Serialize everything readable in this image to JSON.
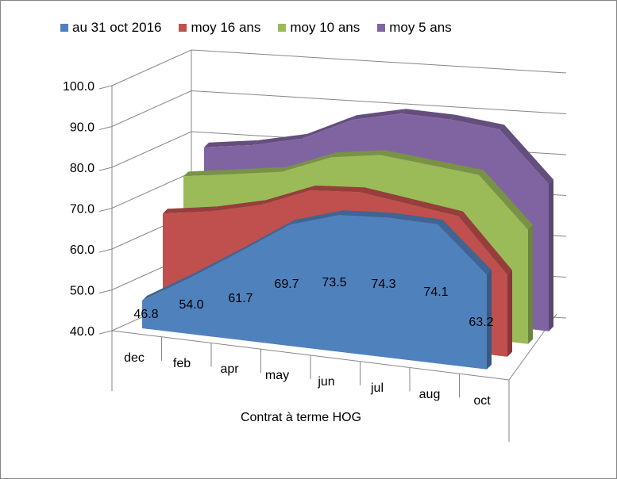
{
  "chart_data": {
    "type": "area",
    "variant": "3d",
    "title": "",
    "xlabel": "Contrat à terme  HOG",
    "ylabel": "",
    "ylim": [
      40,
      100
    ],
    "yticks": [
      "40.0",
      "50.0",
      "60.0",
      "70.0",
      "80.0",
      "90.0",
      "100.0"
    ],
    "grid": true,
    "legend_position": "top",
    "categories": [
      "dec",
      "feb",
      "apr",
      "may",
      "jun",
      "jul",
      "aug",
      "oct"
    ],
    "series": [
      {
        "name": "au 31 oct 2016",
        "color": "#4F81BD",
        "values": [
          46.8,
          54.0,
          61.7,
          69.7,
          73.5,
          74.3,
          74.1,
          63.2
        ],
        "labels": [
          "46.8",
          "54.0",
          "61.7",
          "69.7",
          "73.5",
          "74.3",
          "74.1",
          "63.2"
        ]
      },
      {
        "name": "moy 16 ans",
        "color": "#C0504D",
        "values": [
          65,
          67,
          70,
          75,
          76,
          74.5,
          73,
          60
        ]
      },
      {
        "name": "moy 10 ans",
        "color": "#9BBB59",
        "values": [
          71,
          73,
          75,
          80,
          82,
          81,
          80,
          68
        ]
      },
      {
        "name": "moy 5 ans",
        "color": "#8064A2",
        "values": [
          75,
          77,
          80,
          86,
          89,
          89,
          88,
          76
        ]
      }
    ]
  }
}
